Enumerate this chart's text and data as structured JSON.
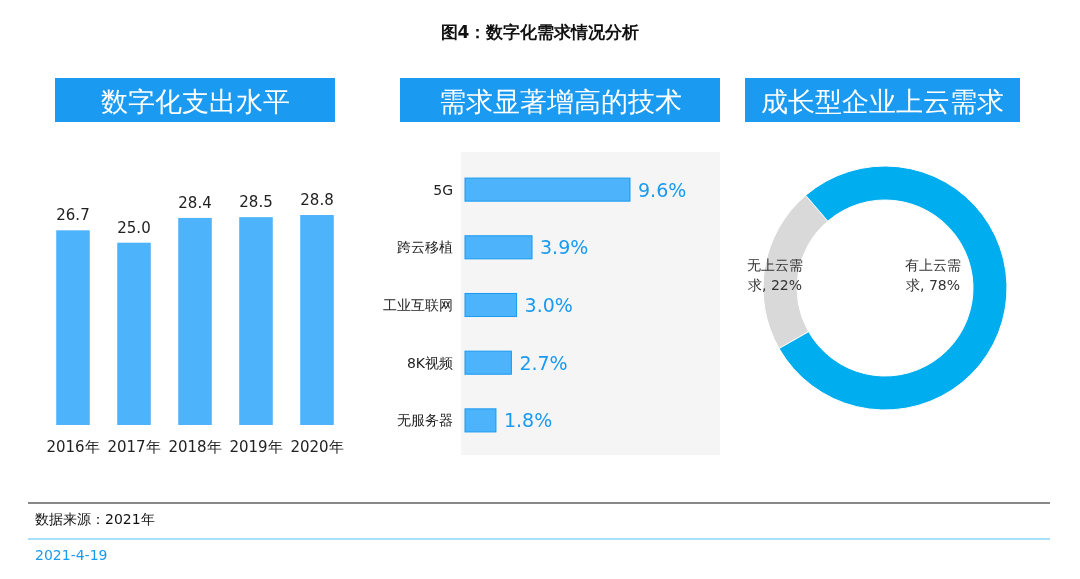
{
  "chart_data": [
    {
      "type": "bar",
      "title": "数字化支出水平",
      "categories": [
        "2016年",
        "2017年",
        "2018年",
        "2019年",
        "2020年"
      ],
      "values": [
        26.7,
        25.0,
        28.4,
        28.5,
        28.8
      ],
      "value_labels": [
        "26.7",
        "25.0",
        "28.4",
        "28.5",
        "28.8"
      ],
      "color": "#4db3fb",
      "annotations": [
        "图4：数字化需求情况分析",
        "数据来源：2021年",
        "2021-4-19"
      ]
    },
    {
      "type": "bar",
      "title": "需求显著增高的技术",
      "orientation": "horizontal",
      "categories": [
        "5G",
        "跨云移植",
        "工业互联网",
        "8K视频",
        "无服务器"
      ],
      "values": [
        9.6,
        3.9,
        3.0,
        2.7,
        1.8
      ],
      "value_labels": [
        "9.6%",
        "3.9%",
        "3.0%",
        "2.7%",
        "1.8%"
      ],
      "color": "#4db3fb"
    },
    {
      "type": "donut",
      "title": "成长型企业上云需求",
      "categories": [
        "无上云需求",
        "有上云需求"
      ],
      "values": [
        22,
        78
      ],
      "colors": [
        "#d9d9d9",
        "#00aeef"
      ],
      "value_labels": [
        "22%",
        "78%"
      ]
    }
  ]
}
